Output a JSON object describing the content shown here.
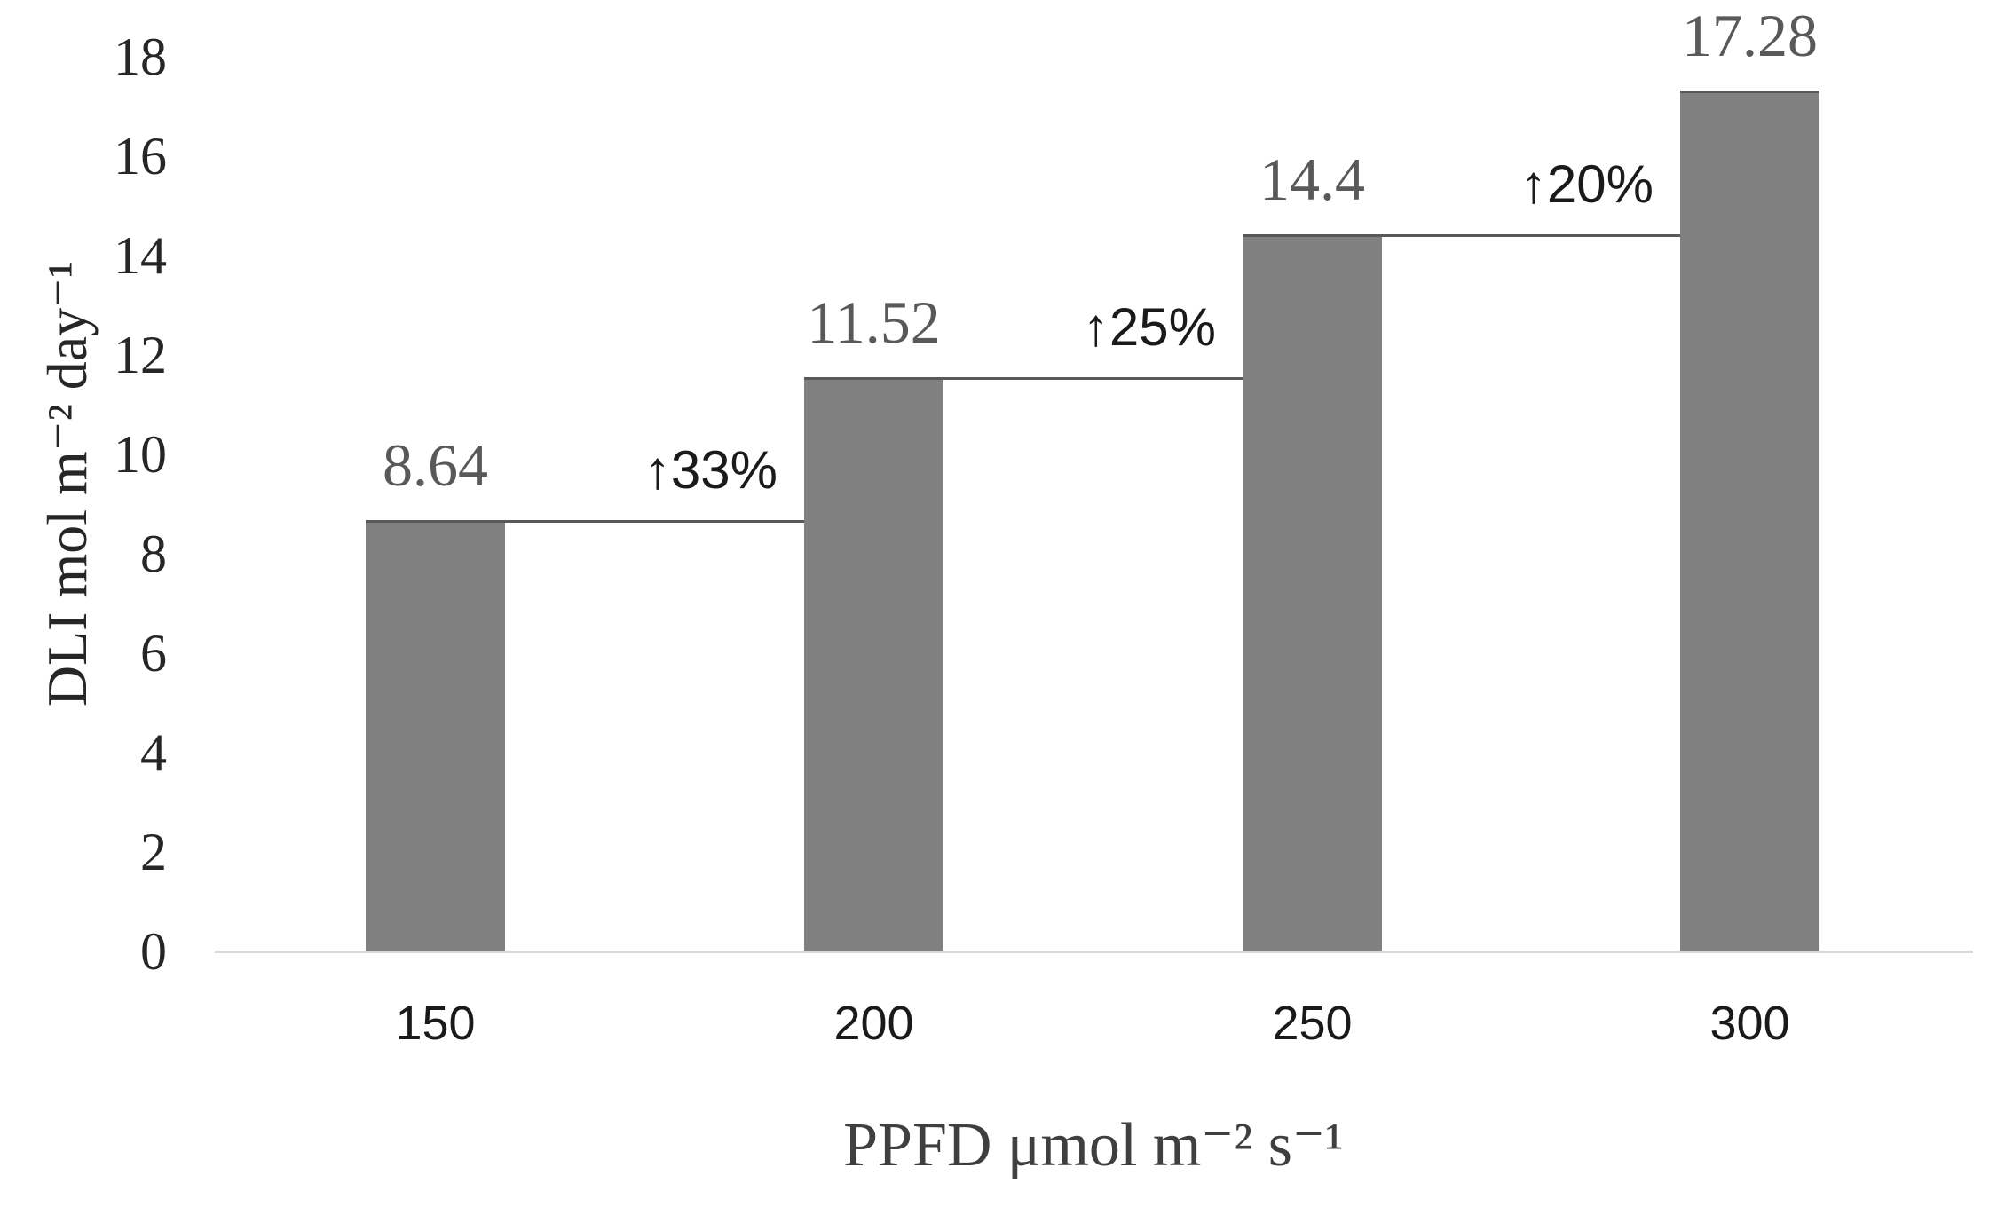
{
  "chart_data": {
    "type": "bar",
    "xlabel": "PPFD μmol m⁻² s⁻¹",
    "ylabel": "DLI mol m⁻² day⁻¹",
    "categories": [
      "150",
      "200",
      "250",
      "300"
    ],
    "values": [
      8.64,
      11.52,
      14.4,
      17.28
    ],
    "data_labels": [
      "8.64",
      "11.52",
      "14.4",
      "17.28"
    ],
    "increase_annotations": [
      "↑33%",
      "↑25%",
      "↑20%"
    ],
    "yticks": [
      "0",
      "2",
      "4",
      "6",
      "8",
      "10",
      "12",
      "14",
      "16",
      "18"
    ],
    "ylim": [
      0,
      18
    ],
    "ytick_step": 2,
    "grid": false,
    "legend_position": "none",
    "colors": {
      "bar_fill": "#808080",
      "step_line": "#595959",
      "axis_line": "#d9d9d9",
      "data_label_text": "#595959",
      "ytick_text": "#262626",
      "xtick_text": "#1a1a1a",
      "annotation_text": "#1a1a1a",
      "axis_title_text": "#3f3f3f"
    }
  }
}
